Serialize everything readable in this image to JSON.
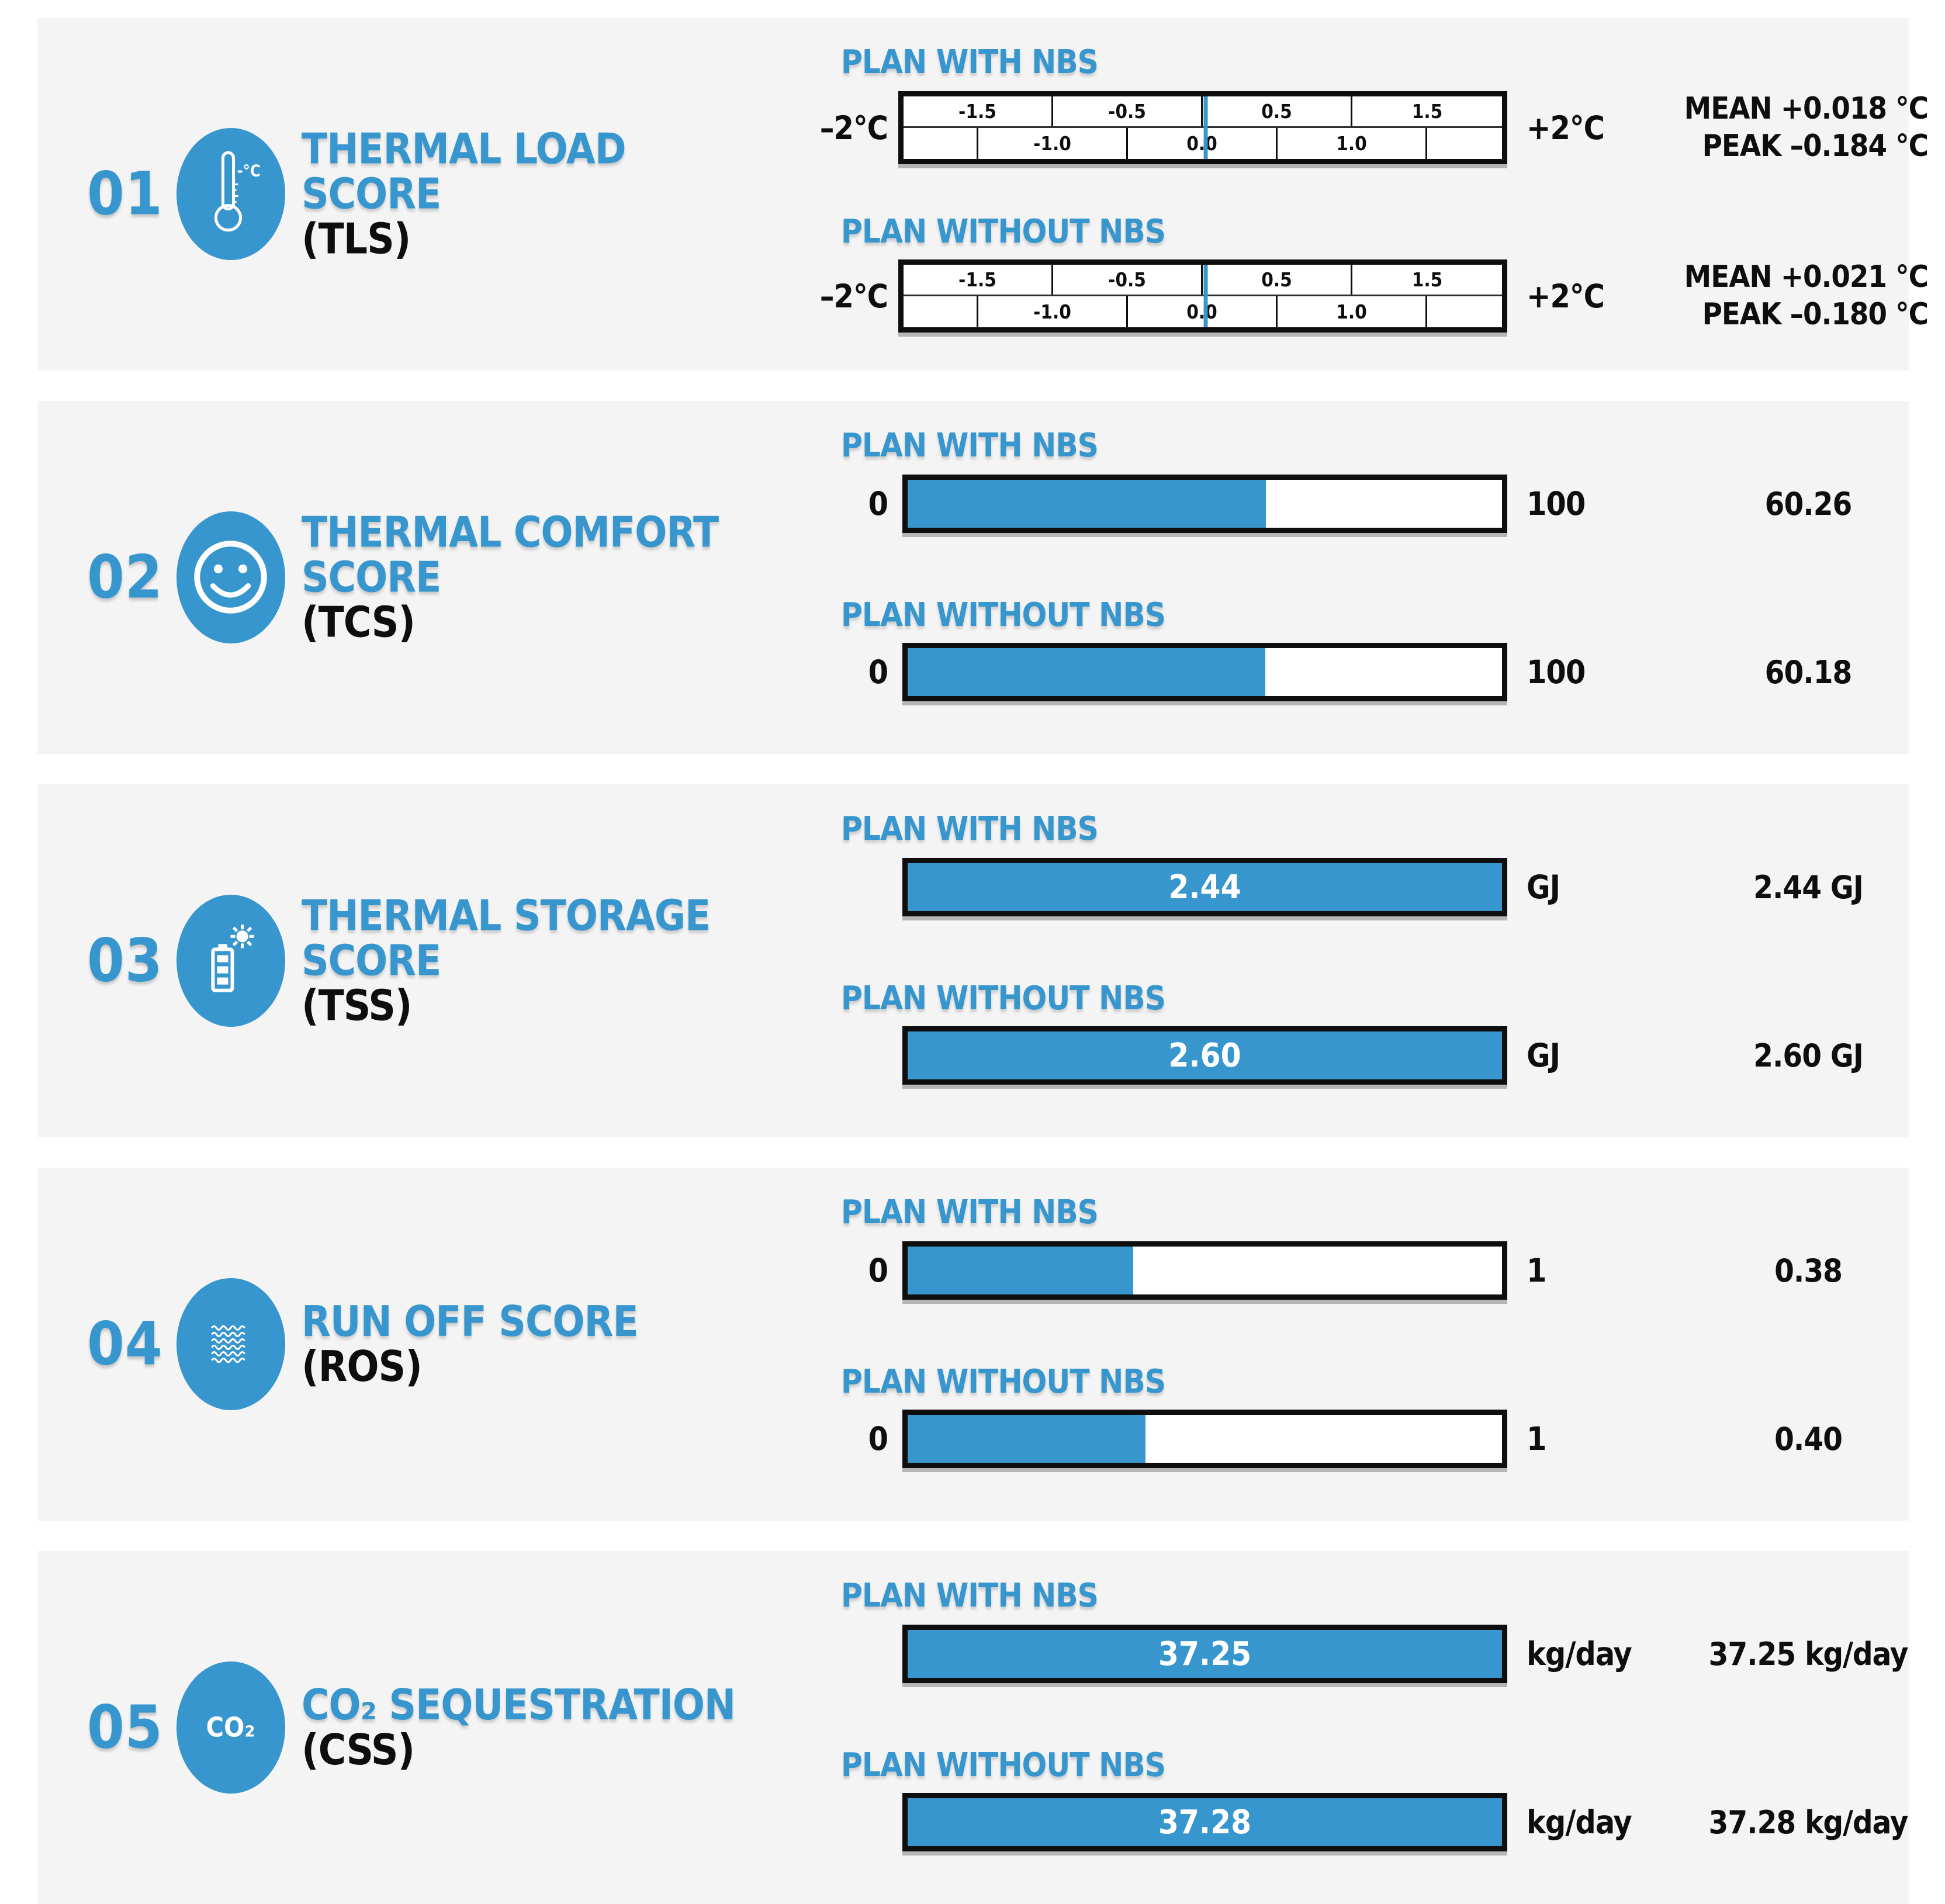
{
  "colors": {
    "accent": "#3796cd",
    "panel_bg": "#f4f4f4",
    "ink": "#0e0e0e"
  },
  "labels": {
    "plan_with": "PLAN WITH NBS",
    "plan_without": "PLAN WITHOUT NBS"
  },
  "sections": [
    {
      "number": "01",
      "icon": "thermometer-icon",
      "icon_text": "-°C",
      "title1": "THERMAL LOAD",
      "title2": "SCORE",
      "acronym": "(TLS)",
      "gauge": {
        "min": "–2°C",
        "max": "+2°C",
        "top_ticks": [
          "-1.5",
          "-0.5",
          "0.5",
          "1.5"
        ],
        "bottom_ticks": [
          "-1.0",
          "0.0",
          "1.0"
        ],
        "rows": [
          {
            "marker_pct": 50.45,
            "stat1": "MEAN +0.018 °C",
            "stat2": "PEAK –0.184 °C"
          },
          {
            "marker_pct": 50.53,
            "stat1": "MEAN +0.021 °C",
            "stat2": "PEAK –0.180 °C"
          }
        ]
      }
    },
    {
      "number": "02",
      "icon": "smiley-face-icon",
      "title1": "THERMAL COMFORT",
      "title2": "SCORE",
      "acronym": "(TCS)",
      "bars": [
        {
          "start": "0",
          "end": "100",
          "fill_pct": 60.26,
          "inner": "",
          "value": "60.26"
        },
        {
          "start": "0",
          "end": "100",
          "fill_pct": 60.18,
          "inner": "",
          "value": "60.18"
        }
      ]
    },
    {
      "number": "03",
      "icon": "battery-sun-icon",
      "title1": "THERMAL STORAGE",
      "title2": "SCORE",
      "acronym": "(TSS)",
      "bars": [
        {
          "start": "",
          "end": "GJ",
          "fill_pct": 100,
          "inner": "2.44",
          "value": "2.44 GJ"
        },
        {
          "start": "",
          "end": "GJ",
          "fill_pct": 100,
          "inner": "2.60",
          "value": "2.60 GJ"
        }
      ]
    },
    {
      "number": "04",
      "icon": "water-waves-icon",
      "title1": "RUN OFF SCORE",
      "title2": "",
      "acronym": "(ROS)",
      "bars": [
        {
          "start": "0",
          "end": "1",
          "fill_pct": 38,
          "inner": "",
          "value": "0.38"
        },
        {
          "start": "0",
          "end": "1",
          "fill_pct": 40,
          "inner": "",
          "value": "0.40"
        }
      ]
    },
    {
      "number": "05",
      "icon": "co2-icon",
      "icon_text": "CO₂",
      "title1": "CO₂ SEQUESTRATION",
      "title2": "",
      "acronym": "(CSS)",
      "bars": [
        {
          "start": "",
          "end": "kg/day",
          "fill_pct": 100,
          "inner": "37.25",
          "value": "37.25 kg/day"
        },
        {
          "start": "",
          "end": "kg/day",
          "fill_pct": 100,
          "inner": "37.28",
          "value": "37.28 kg/day"
        }
      ]
    }
  ],
  "chart_data": [
    {
      "type": "gauge",
      "title": "Thermal Load Score (TLS)",
      "unit": "°C",
      "axis_range": [
        -2,
        2
      ],
      "tick_labels": [
        -1.5,
        -1.0,
        -0.5,
        0.0,
        0.5,
        1.0,
        1.5
      ],
      "series": [
        {
          "name": "Plan with NBS",
          "mean": 0.018,
          "peak": -0.184
        },
        {
          "name": "Plan without NBS",
          "mean": 0.021,
          "peak": -0.18
        }
      ]
    },
    {
      "type": "bar",
      "title": "Thermal Comfort Score (TCS)",
      "axis_range": [
        0,
        100
      ],
      "categories": [
        "Plan with NBS",
        "Plan without NBS"
      ],
      "values": [
        60.26,
        60.18
      ]
    },
    {
      "type": "bar",
      "title": "Thermal Storage Score (TSS)",
      "unit": "GJ",
      "categories": [
        "Plan with NBS",
        "Plan without NBS"
      ],
      "values": [
        2.44,
        2.6
      ]
    },
    {
      "type": "bar",
      "title": "Run Off Score (ROS)",
      "axis_range": [
        0,
        1
      ],
      "categories": [
        "Plan with NBS",
        "Plan without NBS"
      ],
      "values": [
        0.38,
        0.4
      ]
    },
    {
      "type": "bar",
      "title": "CO2 Sequestration (CSS)",
      "unit": "kg/day",
      "categories": [
        "Plan with NBS",
        "Plan without NBS"
      ],
      "values": [
        37.25,
        37.28
      ]
    }
  ]
}
